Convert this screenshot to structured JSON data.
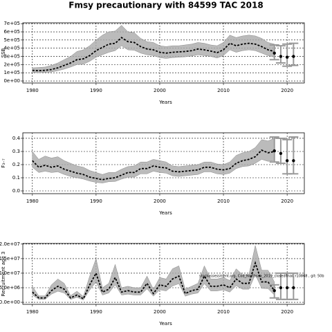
{
  "title": "Fmsy precautionary with 84599 TAC 2018",
  "chart_data": [
    {
      "type": "line",
      "ylabel": "SSB",
      "xlabel": "Years",
      "x": [
        1980,
        1981,
        1982,
        1983,
        1984,
        1985,
        1986,
        1987,
        1988,
        1989,
        1990,
        1991,
        1992,
        1993,
        1994,
        1995,
        1996,
        1997,
        1998,
        1999,
        2000,
        2001,
        2002,
        2003,
        2004,
        2005,
        2006,
        2007,
        2008,
        2009,
        2010,
        2011,
        2012,
        2013,
        2014,
        2015,
        2016,
        2017,
        2018
      ],
      "values": [
        130000,
        125000,
        130000,
        140000,
        160000,
        190000,
        220000,
        260000,
        270000,
        310000,
        370000,
        410000,
        450000,
        460000,
        530000,
        480000,
        470000,
        420000,
        390000,
        380000,
        350000,
        340000,
        350000,
        355000,
        360000,
        370000,
        390000,
        380000,
        365000,
        345000,
        380000,
        460000,
        430000,
        450000,
        460000,
        450000,
        420000,
        380000,
        360000
      ],
      "upper": [
        160000,
        165000,
        170000,
        190000,
        220000,
        260000,
        300000,
        360000,
        380000,
        430000,
        500000,
        560000,
        600000,
        610000,
        680000,
        600000,
        590000,
        520000,
        480000,
        470000,
        430000,
        420000,
        430000,
        430000,
        440000,
        450000,
        470000,
        460000,
        440000,
        430000,
        470000,
        560000,
        530000,
        550000,
        560000,
        550000,
        520000,
        470000,
        450000
      ],
      "lower": [
        105000,
        100000,
        105000,
        110000,
        125000,
        145000,
        170000,
        200000,
        205000,
        240000,
        290000,
        320000,
        350000,
        370000,
        430000,
        380000,
        375000,
        340000,
        320000,
        310000,
        285000,
        275000,
        285000,
        290000,
        295000,
        305000,
        320000,
        310000,
        300000,
        280000,
        310000,
        380000,
        350000,
        370000,
        380000,
        370000,
        340000,
        310000,
        290000
      ],
      "projection": {
        "x": [
          2018,
          2019,
          2020,
          2021
        ],
        "values": [
          340000,
          300000,
          290000,
          300000
        ],
        "lower": [
          260000,
          220000,
          180000,
          190000
        ],
        "upper": [
          440000,
          430000,
          450000,
          460000
        ]
      },
      "xlim": [
        1978.5,
        2022.7
      ],
      "xticks": [
        1980,
        1990,
        2000,
        2010,
        2020
      ],
      "ylim": [
        -25000,
        710000
      ],
      "yticks": [
        {
          "value": 0,
          "label": "0e+00"
        },
        {
          "value": 100000,
          "label": "1e+05"
        },
        {
          "value": 200000,
          "label": "2e+05"
        },
        {
          "value": 300000,
          "label": "3e+05"
        },
        {
          "value": 400000,
          "label": "4e+05"
        },
        {
          "value": 500000,
          "label": "5e+05"
        },
        {
          "value": 600000,
          "label": "6e+05"
        },
        {
          "value": 700000,
          "label": "7e+05"
        }
      ],
      "grid": true
    },
    {
      "type": "line",
      "ylabel": "F₃₋₇",
      "xlabel": "Years",
      "x": [
        1980,
        1981,
        1982,
        1983,
        1984,
        1985,
        1986,
        1987,
        1988,
        1989,
        1990,
        1991,
        1992,
        1993,
        1994,
        1995,
        1996,
        1997,
        1998,
        1999,
        2000,
        2001,
        2002,
        2003,
        2004,
        2005,
        2006,
        2007,
        2008,
        2009,
        2010,
        2011,
        2012,
        2013,
        2014,
        2015,
        2016,
        2017,
        2018
      ],
      "values": [
        0.23,
        0.18,
        0.195,
        0.18,
        0.19,
        0.165,
        0.15,
        0.135,
        0.125,
        0.105,
        0.095,
        0.085,
        0.095,
        0.1,
        0.12,
        0.14,
        0.14,
        0.17,
        0.17,
        0.19,
        0.18,
        0.175,
        0.15,
        0.145,
        0.15,
        0.155,
        0.16,
        0.18,
        0.18,
        0.165,
        0.16,
        0.17,
        0.21,
        0.23,
        0.24,
        0.26,
        0.31,
        0.29,
        0.3
      ],
      "upper": [
        0.3,
        0.24,
        0.265,
        0.25,
        0.26,
        0.23,
        0.21,
        0.19,
        0.18,
        0.155,
        0.14,
        0.125,
        0.14,
        0.14,
        0.165,
        0.185,
        0.19,
        0.22,
        0.22,
        0.24,
        0.23,
        0.22,
        0.19,
        0.185,
        0.19,
        0.195,
        0.2,
        0.22,
        0.22,
        0.205,
        0.2,
        0.22,
        0.27,
        0.29,
        0.3,
        0.33,
        0.39,
        0.38,
        0.4
      ],
      "lower": [
        0.18,
        0.14,
        0.15,
        0.14,
        0.145,
        0.125,
        0.11,
        0.1,
        0.09,
        0.075,
        0.065,
        0.06,
        0.07,
        0.072,
        0.09,
        0.105,
        0.105,
        0.13,
        0.13,
        0.15,
        0.14,
        0.135,
        0.115,
        0.11,
        0.115,
        0.12,
        0.125,
        0.145,
        0.145,
        0.13,
        0.125,
        0.135,
        0.17,
        0.185,
        0.19,
        0.21,
        0.24,
        0.225,
        0.23
      ],
      "projection": {
        "x": [
          2018,
          2019,
          2020,
          2021
        ],
        "values": [
          0.305,
          0.285,
          0.23,
          0.23
        ],
        "lower": [
          0.22,
          0.21,
          0.13,
          0.13
        ],
        "upper": [
          0.41,
          0.4,
          0.39,
          0.41
        ]
      },
      "xlim": [
        1978.5,
        2022.7
      ],
      "xticks": [
        1980,
        1990,
        2000,
        2010,
        2020
      ],
      "ylim": [
        -0.021,
        0.442
      ],
      "yticks": [
        {
          "value": 0,
          "label": "0.0"
        },
        0.1,
        0.2,
        0.3,
        0.4
      ],
      "grid": true
    },
    {
      "type": "line",
      "ylabel": "Recruitment age 3",
      "xlabel": "Years",
      "annotation": "stockassessment.org, Cod_Northsea_2019_closedfinal, r10868 , git: 50b",
      "x": [
        1980,
        1981,
        1982,
        1983,
        1984,
        1985,
        1986,
        1987,
        1988,
        1989,
        1990,
        1991,
        1992,
        1993,
        1994,
        1995,
        1996,
        1997,
        1998,
        1999,
        2000,
        2001,
        2002,
        2003,
        2004,
        2005,
        2006,
        2007,
        2008,
        2009,
        2010,
        2011,
        2012,
        2013,
        2014,
        2015,
        2016,
        2017,
        2018
      ],
      "values": [
        3500000,
        1500000,
        1500000,
        4000000,
        5500000,
        4500000,
        1500000,
        2500000,
        1200000,
        6000000,
        10000000,
        3500000,
        4500000,
        8500000,
        3500000,
        4000000,
        3500000,
        3500000,
        6500000,
        3000000,
        6000000,
        5500000,
        8000000,
        9000000,
        3000000,
        4000000,
        4500000,
        9000000,
        5500000,
        5500000,
        6000000,
        5000000,
        8000000,
        6500000,
        6500000,
        13500000,
        7000000,
        7000000,
        4000000
      ],
      "upper": [
        5500000,
        2200000,
        2200000,
        6000000,
        8000000,
        6500000,
        2300000,
        3800000,
        2000000,
        9000000,
        15000000,
        5000000,
        6500000,
        13000000,
        5000000,
        5500000,
        5000000,
        5000000,
        9000000,
        4500000,
        8500000,
        8000000,
        11500000,
        12500000,
        4500000,
        5500000,
        6500000,
        12500000,
        8000000,
        8000000,
        8500000,
        7500000,
        11500000,
        9500000,
        9500000,
        19500000,
        11000000,
        11000000,
        7000000
      ],
      "lower": [
        2500000,
        1000000,
        1000000,
        2800000,
        3800000,
        3200000,
        1000000,
        1700000,
        800000,
        4200000,
        7000000,
        2500000,
        3200000,
        6000000,
        2500000,
        2800000,
        2500000,
        2500000,
        4600000,
        2100000,
        4300000,
        3900000,
        5600000,
        6400000,
        2100000,
        2800000,
        3200000,
        6400000,
        3900000,
        3900000,
        4300000,
        3500000,
        5700000,
        4500000,
        4500000,
        9500000,
        4800000,
        4700000,
        2500000
      ],
      "projection": {
        "x": [
          2018,
          2019,
          2020,
          2021
        ],
        "values": [
          4000000,
          5000000,
          5000000,
          5000000
        ],
        "lower": [
          1500000,
          1000000,
          1000000,
          1000000
        ],
        "upper": [
          6000000,
          10000000,
          10000000,
          10000000
        ]
      },
      "xlim": [
        1978.5,
        2022.7
      ],
      "xticks": [
        1980,
        1990,
        2000,
        2010,
        2020
      ],
      "ylim": [
        -700000,
        20200000
      ],
      "yticks": [
        {
          "value": 0,
          "label": "0.0e+00"
        },
        {
          "value": 5000000,
          "label": "5.0e+06"
        },
        {
          "value": 10000000,
          "label": "1.0e+07"
        },
        {
          "value": 15000000,
          "label": "1.5e+07"
        },
        {
          "value": 20000000,
          "label": "2.0e+07"
        }
      ],
      "grid": true
    }
  ]
}
